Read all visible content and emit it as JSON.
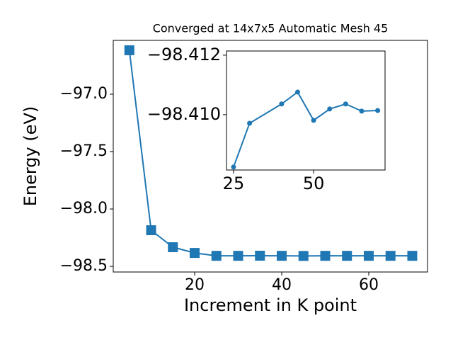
{
  "chart_data": [
    {
      "type": "line",
      "title": "Converged at 14x7x5 Automatic Mesh 45",
      "xlabel": "Increment in K point",
      "ylabel": "Energy (eV)",
      "x": [
        5,
        10,
        15,
        20,
        25,
        30,
        35,
        40,
        45,
        50,
        55,
        60,
        65,
        70
      ],
      "series": [
        {
          "color": "#1f77b4",
          "marker": "square",
          "values": [
            -96.617,
            -98.185,
            -98.333,
            -98.383,
            -98.408,
            -98.408,
            -98.407,
            -98.408,
            -98.409,
            -98.408,
            -98.408,
            -98.408,
            -98.408,
            -98.408
          ]
        }
      ],
      "xlim": [
        1.3,
        73.5
      ],
      "ylim": [
        -98.549,
        -96.531
      ],
      "xticks": [
        20,
        40,
        60
      ],
      "yticks": [
        {
          "value": -98.5,
          "label": "−98.5"
        },
        {
          "value": -98.0,
          "label": "−98.0"
        },
        {
          "value": -97.5,
          "label": "−97.5"
        },
        {
          "value": -97.0,
          "label": "−97.0"
        }
      ]
    },
    {
      "type": "line",
      "x": [
        25,
        30,
        40,
        45,
        50,
        55,
        60,
        65,
        70
      ],
      "series": [
        {
          "color": "#1f77b4",
          "marker": "circle",
          "values": [
            -98.40824,
            -98.40971,
            -98.41036,
            -98.41076,
            -98.40981,
            -98.41019,
            -98.41036,
            -98.41012,
            -98.41014
          ]
        }
      ],
      "xlim": [
        22.8,
        72.3
      ],
      "ylim": [
        -98.40814,
        -98.41214
      ],
      "xticks": [
        25,
        50
      ],
      "yticks": [
        {
          "value": -98.412,
          "label": "−98.412"
        },
        {
          "value": -98.41,
          "label": "−98.410"
        }
      ]
    }
  ]
}
